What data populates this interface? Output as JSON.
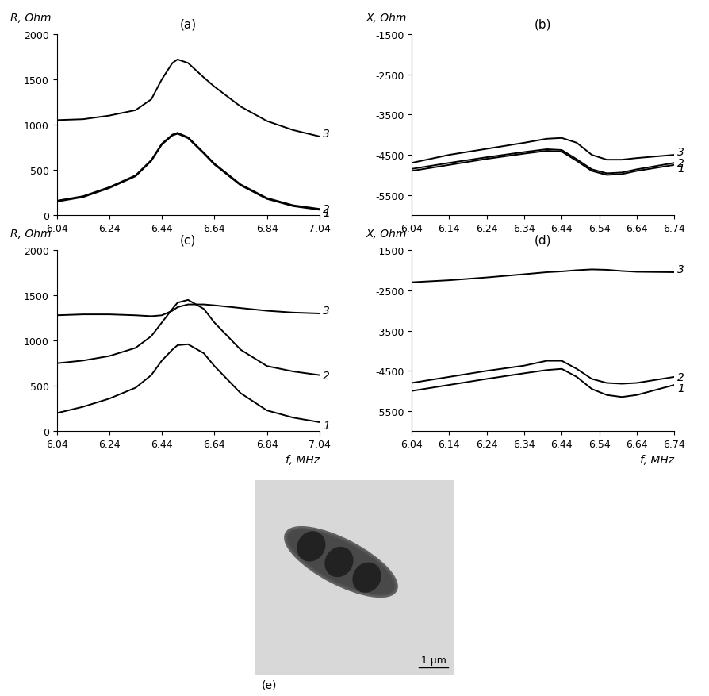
{
  "chart_data": [
    {
      "type": "line",
      "title": "(a)",
      "ylabel": "R, Ohm",
      "x": [
        6.04,
        6.14,
        6.24,
        6.34,
        6.4,
        6.44,
        6.48,
        6.5,
        6.54,
        6.6,
        6.64,
        6.74,
        6.84,
        6.94,
        7.04
      ],
      "xlim": [
        6.04,
        7.04
      ],
      "xticks": [
        6.04,
        6.24,
        6.44,
        6.64,
        6.84,
        7.04
      ],
      "ylim": [
        0,
        2000
      ],
      "yticks": [
        0,
        500,
        1000,
        1500,
        2000
      ],
      "series": [
        {
          "name": "1",
          "color": "#000000",
          "values": [
            150,
            200,
            300,
            430,
            600,
            780,
            880,
            900,
            850,
            680,
            560,
            330,
            180,
            100,
            60
          ]
        },
        {
          "name": "2",
          "color": "#000000",
          "values": [
            160,
            210,
            310,
            440,
            610,
            790,
            890,
            910,
            860,
            690,
            570,
            340,
            190,
            110,
            70
          ]
        },
        {
          "name": "3",
          "color": "#000000",
          "values": [
            1050,
            1060,
            1100,
            1160,
            1280,
            1500,
            1680,
            1720,
            1680,
            1520,
            1420,
            1200,
            1040,
            940,
            870
          ]
        }
      ]
    },
    {
      "type": "line",
      "title": "(b)",
      "ylabel": "X, Ohm",
      "x": [
        6.04,
        6.14,
        6.24,
        6.34,
        6.4,
        6.44,
        6.48,
        6.52,
        6.56,
        6.6,
        6.64,
        6.74
      ],
      "xlim": [
        6.04,
        6.74
      ],
      "xticks": [
        6.04,
        6.14,
        6.24,
        6.34,
        6.44,
        6.54,
        6.64,
        6.74
      ],
      "ylim": [
        -6000,
        -1500
      ],
      "yticks": [
        -5500,
        -4500,
        -3500,
        -2500,
        -1500
      ],
      "series": [
        {
          "name": "1",
          "color": "#000000",
          "values": [
            -4900,
            -4750,
            -4600,
            -4470,
            -4400,
            -4420,
            -4650,
            -4900,
            -5000,
            -4980,
            -4900,
            -4750
          ]
        },
        {
          "name": "2",
          "color": "#000000",
          "values": [
            -4850,
            -4700,
            -4560,
            -4430,
            -4360,
            -4380,
            -4610,
            -4860,
            -4960,
            -4940,
            -4860,
            -4700
          ]
        },
        {
          "name": "3",
          "color": "#000000",
          "values": [
            -4700,
            -4500,
            -4350,
            -4200,
            -4100,
            -4080,
            -4200,
            -4500,
            -4620,
            -4620,
            -4580,
            -4500
          ]
        }
      ]
    },
    {
      "type": "line",
      "title": "(c)",
      "ylabel": "R, Ohm",
      "xlabel": "f, MHz",
      "x": [
        6.04,
        6.14,
        6.24,
        6.34,
        6.4,
        6.44,
        6.48,
        6.5,
        6.54,
        6.6,
        6.64,
        6.74,
        6.84,
        6.94,
        7.04
      ],
      "xlim": [
        6.04,
        7.04
      ],
      "xticks": [
        6.04,
        6.24,
        6.44,
        6.64,
        6.84,
        7.04
      ],
      "ylim": [
        0,
        2000
      ],
      "yticks": [
        0,
        500,
        1000,
        1500,
        2000
      ],
      "series": [
        {
          "name": "1",
          "color": "#000000",
          "values": [
            200,
            270,
            360,
            480,
            620,
            780,
            900,
            950,
            960,
            860,
            720,
            420,
            230,
            150,
            100
          ]
        },
        {
          "name": "2",
          "color": "#000000",
          "values": [
            750,
            780,
            830,
            920,
            1050,
            1200,
            1350,
            1420,
            1450,
            1350,
            1200,
            900,
            720,
            660,
            620
          ]
        },
        {
          "name": "3",
          "color": "#000000",
          "values": [
            1280,
            1290,
            1290,
            1280,
            1270,
            1280,
            1330,
            1370,
            1400,
            1400,
            1390,
            1360,
            1330,
            1310,
            1300
          ]
        }
      ]
    },
    {
      "type": "line",
      "title": "(d)",
      "ylabel": "X, Ohm",
      "xlabel": "f, MHz",
      "x": [
        6.04,
        6.14,
        6.24,
        6.34,
        6.4,
        6.44,
        6.48,
        6.52,
        6.56,
        6.6,
        6.64,
        6.74
      ],
      "xlim": [
        6.04,
        6.74
      ],
      "xticks": [
        6.04,
        6.14,
        6.24,
        6.34,
        6.44,
        6.54,
        6.64,
        6.74
      ],
      "ylim": [
        -6000,
        -1500
      ],
      "yticks": [
        -5500,
        -4500,
        -3500,
        -2500,
        -1500
      ],
      "series": [
        {
          "name": "1",
          "color": "#000000",
          "values": [
            -5000,
            -4850,
            -4700,
            -4560,
            -4480,
            -4450,
            -4650,
            -4950,
            -5100,
            -5150,
            -5100,
            -4850
          ]
        },
        {
          "name": "2",
          "color": "#000000",
          "values": [
            -4800,
            -4650,
            -4500,
            -4370,
            -4250,
            -4250,
            -4450,
            -4700,
            -4800,
            -4820,
            -4800,
            -4650
          ]
        },
        {
          "name": "3",
          "color": "#000000",
          "values": [
            -2300,
            -2250,
            -2180,
            -2100,
            -2050,
            -2030,
            -2000,
            -1980,
            -1990,
            -2020,
            -2040,
            -2050
          ]
        }
      ]
    }
  ],
  "image": {
    "label": "(e)",
    "scale_bar": "1 μm"
  }
}
